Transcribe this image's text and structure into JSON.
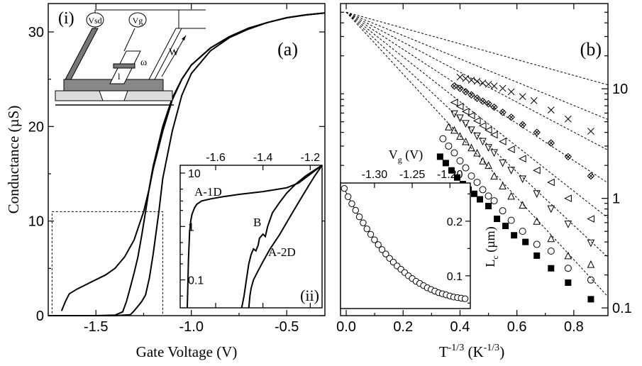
{
  "chart_data": [
    {
      "panel": "(a)",
      "type": "line",
      "xlabel": "Gate Voltage (V)",
      "ylabel": "Conductance (µS)",
      "xlim": [
        -1.75,
        -0.3
      ],
      "ylim": [
        0,
        33
      ],
      "xticks": [
        -1.5,
        -1.0,
        -0.5
      ],
      "xtick_labels": [
        "-1.5",
        "-1.0",
        "-0.5"
      ],
      "yticks": [
        0,
        10,
        20,
        30
      ],
      "ytick_labels": [
        "0",
        "10",
        "20",
        "30"
      ],
      "series": [
        {
          "x": [
            -1.68,
            -1.66,
            -1.64,
            -1.6,
            -1.55,
            -1.5,
            -1.45,
            -1.4,
            -1.35,
            -1.3,
            -1.27,
            -1.25,
            -1.22,
            -1.2,
            -1.15,
            -1.1,
            -1.05,
            -1.0,
            -0.9,
            -0.8,
            -0.7,
            -0.6,
            -0.5,
            -0.4,
            -0.3
          ],
          "y": [
            0.5,
            1.5,
            2.3,
            2.8,
            3.3,
            3.8,
            4.3,
            5.0,
            6.2,
            8.0,
            9.8,
            11.0,
            13.5,
            15.5,
            19.5,
            22.8,
            25.0,
            26.5,
            28.3,
            29.5,
            30.4,
            31.0,
            31.5,
            31.8,
            32.0
          ]
        },
        {
          "x": [
            -1.75,
            -1.5,
            -1.4,
            -1.36,
            -1.34,
            -1.32,
            -1.3,
            -1.28,
            -1.26,
            -1.24,
            -1.22,
            -1.2,
            -1.15,
            -1.1,
            -1.05,
            -1.0,
            -0.9,
            -0.8,
            -0.7,
            -0.6,
            -0.5,
            -0.4,
            -0.3
          ],
          "y": [
            0,
            0,
            0.05,
            0.4,
            1.5,
            3.0,
            4.5,
            6.2,
            8.5,
            11.0,
            13.6,
            15.8,
            20.0,
            23.0,
            25.0,
            26.5,
            28.3,
            29.5,
            30.4,
            31.0,
            31.5,
            31.8,
            32.0
          ]
        },
        {
          "x": [
            -1.75,
            -1.4,
            -1.32,
            -1.3,
            -1.28,
            -1.26,
            -1.24,
            -1.22,
            -1.2,
            -1.17,
            -1.15,
            -1.1,
            -1.05,
            -1.0,
            -0.9,
            -0.8,
            -0.7,
            -0.6,
            -0.5,
            -0.4,
            -0.3
          ],
          "y": [
            0,
            0,
            0.1,
            0.5,
            1.0,
            1.5,
            2.2,
            4.0,
            6.5,
            11.0,
            14.5,
            19.5,
            23.3,
            25.6,
            28.0,
            29.4,
            30.3,
            31.0,
            31.5,
            31.8,
            32.0
          ]
        }
      ],
      "inset_box": {
        "x": [
          -1.73,
          -1.15
        ],
        "y": [
          0,
          11
        ]
      }
    },
    {
      "panel": "(ii)",
      "type": "line",
      "xlim": [
        -1.75,
        -1.15
      ],
      "ylim": [
        0.03,
        14
      ],
      "yscale": "log",
      "xticks": [
        -1.6,
        -1.4,
        -1.2
      ],
      "xtick_labels": [
        "-1.6",
        "-1.4",
        "-1.2"
      ],
      "yticks": [
        0.1,
        1,
        10
      ],
      "ytick_labels": [
        "0.1",
        "1",
        "10"
      ],
      "annotations": [
        "A-1D",
        "B",
        "A-2D"
      ],
      "series": [
        {
          "x": [
            -1.72,
            -1.718,
            -1.715,
            -1.71,
            -1.705,
            -1.7,
            -1.69,
            -1.68,
            -1.66,
            -1.62,
            -1.57,
            -1.5,
            -1.4,
            -1.3,
            -1.25,
            -1.2,
            -1.15
          ],
          "y": [
            0.03,
            0.07,
            0.25,
            0.8,
            1.3,
            1.7,
            2.2,
            2.6,
            3.0,
            3.3,
            3.6,
            4.0,
            4.5,
            5.3,
            6.5,
            9.5,
            14
          ]
        },
        {
          "x": [
            -1.49,
            -1.48,
            -1.47,
            -1.46,
            -1.45,
            -1.44,
            -1.43,
            -1.42,
            -1.415,
            -1.4,
            -1.39,
            -1.38,
            -1.36,
            -1.33,
            -1.3,
            -1.26,
            -1.22,
            -1.18,
            -1.15
          ],
          "y": [
            0.03,
            0.05,
            0.1,
            0.2,
            0.3,
            0.38,
            0.35,
            0.45,
            0.6,
            0.72,
            0.65,
            1.0,
            1.8,
            2.8,
            4.2,
            6.3,
            8.8,
            11.5,
            14
          ]
        },
        {
          "x": [
            -1.46,
            -1.455,
            -1.45,
            -1.44,
            -1.42,
            -1.4,
            -1.37,
            -1.33,
            -1.29,
            -1.25,
            -1.21,
            -1.18,
            -1.15
          ],
          "y": [
            0.03,
            0.05,
            0.07,
            0.1,
            0.15,
            0.22,
            0.38,
            0.7,
            1.4,
            2.8,
            5.5,
            9.0,
            14
          ]
        }
      ]
    },
    {
      "panel": "(b)",
      "type": "scatter",
      "xlabel": "T-1/3 (K-1/3)",
      "xlim": [
        -0.02,
        0.92
      ],
      "ylim": [
        0.085,
        60
      ],
      "yscale": "log",
      "xticks": [
        0,
        0.2,
        0.4,
        0.6,
        0.8
      ],
      "xtick_labels": [
        "0.0",
        "0.2",
        "0.4",
        "0.6",
        "0.8"
      ],
      "yticks": [
        0.1,
        1,
        10
      ],
      "ytick_labels": [
        "0.1",
        "1",
        "10"
      ],
      "fit_intercept": 50,
      "series": [
        {
          "marker": "cross",
          "slope": 1.66,
          "x": [
            0.4,
            0.42,
            0.44,
            0.46,
            0.48,
            0.5,
            0.52,
            0.55,
            0.58,
            0.62,
            0.66,
            0.72,
            0.78,
            0.86
          ],
          "y": [
            12.8,
            12.4,
            12.0,
            11.7,
            11.3,
            11.0,
            10.6,
            10.1,
            9.4,
            8.5,
            7.8,
            6.4,
            5.3,
            4.1
          ]
        },
        {
          "marker": "diamond",
          "slope": 2.45,
          "x": [
            0.38,
            0.4,
            0.42,
            0.44,
            0.46,
            0.48,
            0.5,
            0.52,
            0.55,
            0.58,
            0.62,
            0.67,
            0.72,
            0.78,
            0.86
          ],
          "y": [
            10.6,
            10.1,
            9.4,
            8.8,
            8.2,
            7.7,
            7.3,
            6.8,
            6.1,
            5.5,
            4.7,
            4.0,
            3.2,
            2.4,
            1.6
          ]
        },
        {
          "marker": "tri-left",
          "slope": 3.15,
          "x": [
            0.38,
            0.4,
            0.42,
            0.44,
            0.46,
            0.48,
            0.5,
            0.52,
            0.55,
            0.58,
            0.62,
            0.67,
            0.72,
            0.78,
            0.86
          ],
          "y": [
            7.5,
            6.9,
            6.2,
            5.7,
            5.1,
            4.6,
            4.2,
            3.8,
            3.3,
            2.8,
            2.3,
            1.8,
            1.4,
            1.0,
            0.65
          ]
        },
        {
          "marker": "tri-down",
          "slope": 3.9,
          "x": [
            0.38,
            0.4,
            0.42,
            0.44,
            0.46,
            0.48,
            0.5,
            0.52,
            0.55,
            0.58,
            0.62,
            0.67,
            0.72,
            0.78,
            0.86
          ],
          "y": [
            5.9,
            5.4,
            4.8,
            4.2,
            3.7,
            3.3,
            2.9,
            2.6,
            2.1,
            1.8,
            1.5,
            1.1,
            0.8,
            0.58,
            0.39
          ]
        },
        {
          "marker": "tri-up",
          "slope": 4.7,
          "x": [
            0.36,
            0.38,
            0.4,
            0.42,
            0.44,
            0.46,
            0.48,
            0.5,
            0.52,
            0.55,
            0.58,
            0.62,
            0.67,
            0.72,
            0.78,
            0.86
          ],
          "y": [
            4.5,
            4.2,
            3.7,
            3.3,
            2.9,
            2.6,
            2.2,
            2.0,
            1.6,
            1.3,
            1.05,
            0.87,
            0.62,
            0.43,
            0.3,
            0.25
          ]
        },
        {
          "marker": "circle",
          "slope": 5.6,
          "x": [
            0.34,
            0.36,
            0.38,
            0.4,
            0.42,
            0.44,
            0.46,
            0.48,
            0.5,
            0.52,
            0.55,
            0.58,
            0.62,
            0.67,
            0.72,
            0.78,
            0.86
          ],
          "y": [
            3.5,
            3.0,
            2.6,
            2.2,
            1.9,
            1.6,
            1.4,
            1.2,
            1.05,
            0.95,
            0.77,
            0.63,
            0.5,
            0.38,
            0.33,
            0.23,
            0.18
          ]
        },
        {
          "marker": "square",
          "slope": 6.5,
          "x": [
            0.33,
            0.35,
            0.37,
            0.39,
            0.41,
            0.43,
            0.45,
            0.47,
            0.5,
            0.53,
            0.56,
            0.59,
            0.63,
            0.67,
            0.72,
            0.78,
            0.86
          ],
          "y": [
            2.4,
            2.1,
            1.8,
            1.55,
            1.35,
            1.2,
            1.1,
            0.98,
            0.85,
            0.65,
            0.56,
            0.46,
            0.4,
            0.3,
            0.23,
            0.17,
            0.12
          ]
        }
      ]
    },
    {
      "panel": "inset-b",
      "type": "scatter",
      "xlabel": "Vg (V)",
      "ylabel": "Lc (µm)",
      "xlim": [
        -1.345,
        -1.173
      ],
      "ylim": [
        0.04,
        0.27
      ],
      "xticks": [
        -1.3,
        -1.25,
        -1.2
      ],
      "xtick_labels": [
        "-1.30",
        "-1.25",
        "-1.20"
      ],
      "yticks": [
        0.1,
        0.2
      ],
      "ytick_labels": [
        "0.1",
        "0.2"
      ],
      "x": [
        -1.34,
        -1.335,
        -1.33,
        -1.325,
        -1.32,
        -1.315,
        -1.31,
        -1.305,
        -1.3,
        -1.295,
        -1.29,
        -1.285,
        -1.28,
        -1.275,
        -1.27,
        -1.265,
        -1.26,
        -1.255,
        -1.25,
        -1.245,
        -1.24,
        -1.235,
        -1.23,
        -1.225,
        -1.22,
        -1.215,
        -1.21,
        -1.205,
        -1.2,
        -1.195,
        -1.19,
        -1.185,
        -1.18
      ],
      "y": [
        0.26,
        0.245,
        0.232,
        0.22,
        0.208,
        0.197,
        0.186,
        0.176,
        0.166,
        0.157,
        0.148,
        0.14,
        0.132,
        0.125,
        0.118,
        0.112,
        0.106,
        0.1,
        0.095,
        0.09,
        0.086,
        0.082,
        0.078,
        0.075,
        0.072,
        0.069,
        0.067,
        0.065,
        0.063,
        0.061,
        0.06,
        0.059,
        0.058
      ]
    }
  ],
  "schematic": {
    "vsd_label": "Vsd",
    "vg_label": "Vg",
    "w_label": "W",
    "omega_label": "ω",
    "l_label": "l",
    "panel_label": "(i)"
  }
}
